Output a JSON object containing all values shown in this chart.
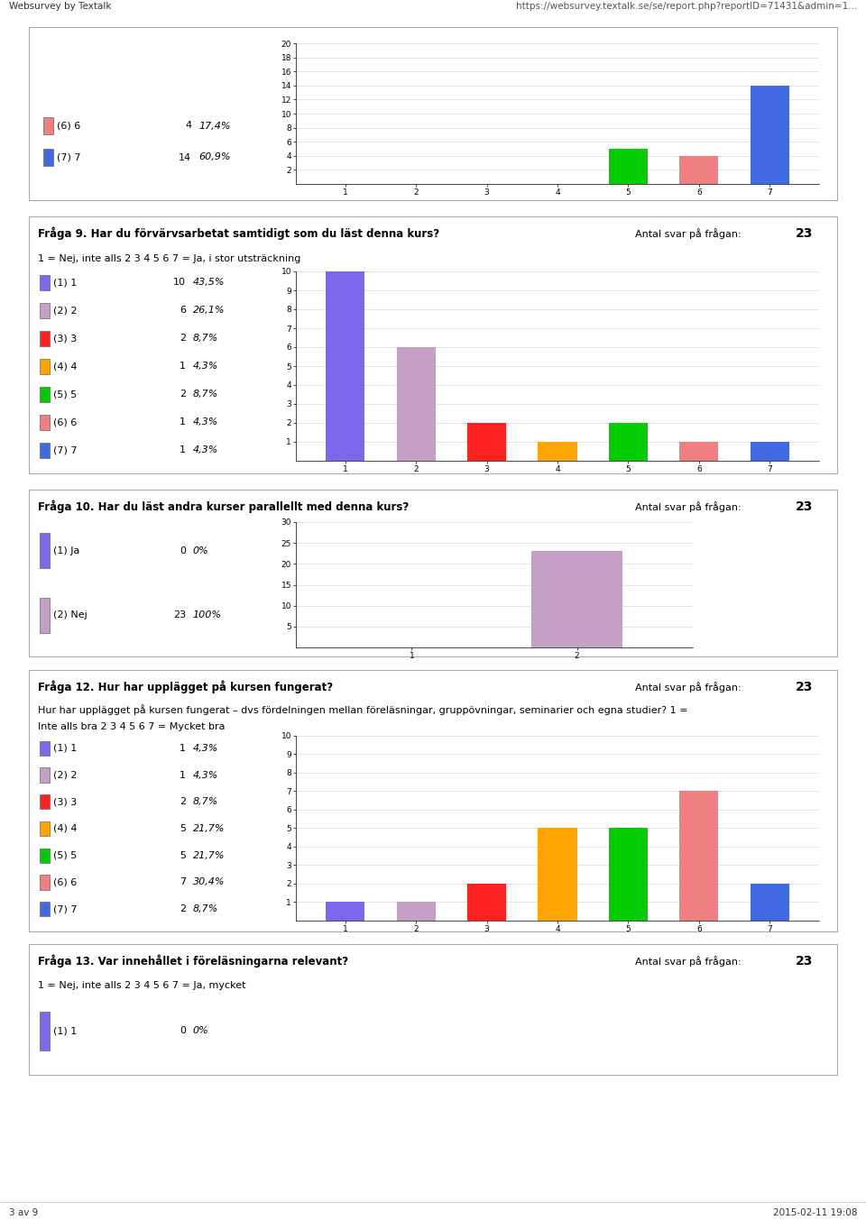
{
  "page_header_left": "Websurvey by Textalk",
  "page_header_right": "https://websurvey.textalk.se/se/report.php?reportID=71431&admin=1...",
  "page_footer_left": "3 av 9",
  "page_footer_right": "2015-02-11 19:08",
  "section1": {
    "legend_items": [
      {
        "label": "(6) 6",
        "count": "4",
        "pct": "17,4%",
        "color": "#f08080"
      },
      {
        "label": "(7) 7",
        "count": "14",
        "pct": "60,9%",
        "color": "#4169e1"
      }
    ],
    "bar_values": [
      0,
      0,
      0,
      0,
      5,
      4,
      14
    ],
    "bar_colors": [
      "#7b68ee",
      "#c4a0c4",
      "#ff2020",
      "#ffa500",
      "#00cc00",
      "#f08080",
      "#4169e1"
    ],
    "x_labels": [
      "1",
      "2",
      "3",
      "4",
      "5",
      "6",
      "7"
    ],
    "ylim": [
      0,
      20
    ],
    "yticks": [
      2,
      4,
      6,
      8,
      10,
      12,
      14,
      16,
      18,
      20
    ]
  },
  "section2": {
    "title": "Fråga 9. Har du förvärvsarbetat samtidigt som du läst denna kurs?",
    "antal": "23",
    "subtitle": "1 = Nej, inte alls 2 3 4 5 6 7 = Ja, i stor utssträckning",
    "subtitle_real": "1 = Nej, inte alls 2 3 4 5 6 7 = Ja, i stor utsträckning",
    "legend_items": [
      {
        "label": "(1) 1",
        "count": "10",
        "pct": "43,5%",
        "color": "#7b68ee"
      },
      {
        "label": "(2) 2",
        "count": "6",
        "pct": "26,1%",
        "color": "#c4a0c4"
      },
      {
        "label": "(3) 3",
        "count": "2",
        "pct": "8,7%",
        "color": "#ff2020"
      },
      {
        "label": "(4) 4",
        "count": "1",
        "pct": "4,3%",
        "color": "#ffa500"
      },
      {
        "label": "(5) 5",
        "count": "2",
        "pct": "8,7%",
        "color": "#00cc00"
      },
      {
        "label": "(6) 6",
        "count": "1",
        "pct": "4,3%",
        "color": "#f08080"
      },
      {
        "label": "(7) 7",
        "count": "1",
        "pct": "4,3%",
        "color": "#4169e1"
      }
    ],
    "bar_values": [
      10,
      6,
      2,
      1,
      2,
      1,
      1
    ],
    "bar_colors": [
      "#7b68ee",
      "#c4a0c4",
      "#ff2020",
      "#ffa500",
      "#00cc00",
      "#f08080",
      "#4169e1"
    ],
    "x_labels": [
      "1",
      "2",
      "3",
      "4",
      "5",
      "6",
      "7"
    ],
    "ylim": [
      0,
      10
    ],
    "yticks": [
      1,
      2,
      3,
      4,
      5,
      6,
      7,
      8,
      9,
      10
    ]
  },
  "section3": {
    "title": "Fråga 10. Har du läst andra kurser parallellt med denna kurs?",
    "antal": "23",
    "legend_items": [
      {
        "label": "(1) Ja",
        "count": "0",
        "pct": "0%",
        "color": "#7b68ee"
      },
      {
        "label": "(2) Nej",
        "count": "23",
        "pct": "100%",
        "color": "#c4a0c4"
      }
    ],
    "bar_values": [
      0,
      23
    ],
    "bar_colors": [
      "#7b68ee",
      "#c4a0c4"
    ],
    "x_labels": [
      "1",
      "2"
    ],
    "ylim": [
      0,
      30
    ],
    "yticks": [
      5,
      10,
      15,
      20,
      25,
      30
    ]
  },
  "section4": {
    "title": "Fråga 12. Hur har upplägget på kursen fungerat?",
    "antal": "23",
    "subtitle_line1": "Hur har upplägget på kursen fungerat – dvs fördelningen mellan föreläsningar, gruppövningar, seminarier och egna studier? 1 =",
    "subtitle_line2": "Inte alls bra 2 3 4 5 6 7 = Mycket bra",
    "legend_items": [
      {
        "label": "(1) 1",
        "count": "1",
        "pct": "4,3%",
        "color": "#7b68ee"
      },
      {
        "label": "(2) 2",
        "count": "1",
        "pct": "4,3%",
        "color": "#c4a0c4"
      },
      {
        "label": "(3) 3",
        "count": "2",
        "pct": "8,7%",
        "color": "#ff2020"
      },
      {
        "label": "(4) 4",
        "count": "5",
        "pct": "21,7%",
        "color": "#ffa500"
      },
      {
        "label": "(5) 5",
        "count": "5",
        "pct": "21,7%",
        "color": "#00cc00"
      },
      {
        "label": "(6) 6",
        "count": "7",
        "pct": "30,4%",
        "color": "#f08080"
      },
      {
        "label": "(7) 7",
        "count": "2",
        "pct": "8,7%",
        "color": "#4169e1"
      }
    ],
    "bar_values": [
      1,
      1,
      2,
      5,
      5,
      7,
      2
    ],
    "bar_colors": [
      "#7b68ee",
      "#c4a0c4",
      "#ff2020",
      "#ffa500",
      "#00cc00",
      "#f08080",
      "#4169e1"
    ],
    "x_labels": [
      "1",
      "2",
      "3",
      "4",
      "5",
      "6",
      "7"
    ],
    "ylim": [
      0,
      10
    ],
    "yticks": [
      1,
      2,
      3,
      4,
      5,
      6,
      7,
      8,
      9,
      10
    ]
  },
  "section5": {
    "title": "Fråga 13. Var innehållet i föreläsningarna relevant?",
    "antal": "23",
    "subtitle": "1 = Nej, inte alls 2 3 4 5 6 7 = Ja, mycket",
    "legend_items": [
      {
        "label": "(1) 1",
        "count": "0",
        "pct": "0%",
        "color": "#7b68ee"
      }
    ]
  },
  "bg_color": "#ffffff",
  "title_fontsize": 8.5,
  "label_fontsize": 8.0,
  "tick_fontsize": 6.5
}
